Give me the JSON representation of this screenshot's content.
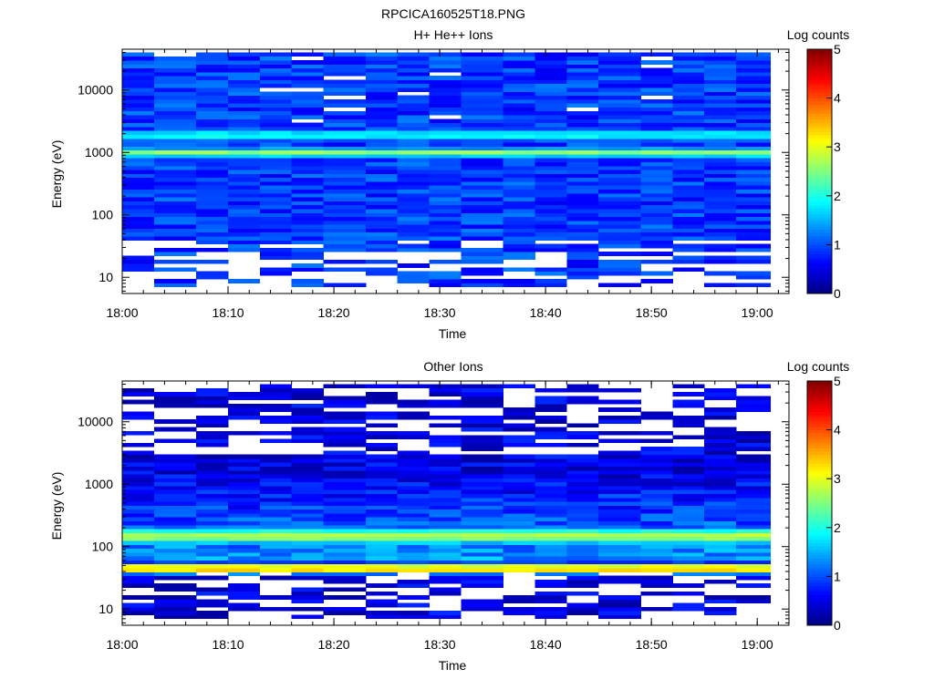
{
  "figure_title": "RPCICA160525T18.PNG",
  "chart_data": [
    {
      "type": "heatmap",
      "title": "H+ He++ Ions",
      "xlabel": "Time",
      "ylabel": "Energy (eV)",
      "xlim": [
        "18:00",
        "19:03"
      ],
      "ylim": [
        5.5,
        45000
      ],
      "yscale": "log",
      "x_ticks": [
        "18:00",
        "18:10",
        "18:20",
        "18:30",
        "18:40",
        "18:50",
        "19:00"
      ],
      "y_ticks": [
        "10",
        "100",
        "1000",
        "10000"
      ],
      "colorbar": {
        "label": "Log counts",
        "range": [
          0,
          5
        ],
        "ticks": [
          "0",
          "1",
          "2",
          "3",
          "4",
          "5"
        ]
      },
      "time_bins": [
        "18:00",
        "18:03",
        "18:07",
        "18:10",
        "18:13",
        "18:16",
        "18:19",
        "18:23",
        "18:26",
        "18:29",
        "18:32",
        "18:36",
        "18:39",
        "18:42",
        "18:45",
        "18:49",
        "18:52",
        "18:55",
        "18:58"
      ],
      "features": [
        {
          "energy": 1000,
          "log_counts": 2.6,
          "description_band": "peak"
        },
        {
          "energy": 1900,
          "log_counts": 1.9,
          "description_band": "secondary"
        }
      ],
      "background_log_counts": 0.9
    },
    {
      "type": "heatmap",
      "title": "Other Ions",
      "xlabel": "Time",
      "ylabel": "Energy (eV)",
      "xlim": [
        "18:00",
        "19:03"
      ],
      "ylim": [
        5.5,
        45000
      ],
      "yscale": "log",
      "x_ticks": [
        "18:00",
        "18:10",
        "18:20",
        "18:30",
        "18:40",
        "18:50",
        "19:00"
      ],
      "y_ticks": [
        "10",
        "100",
        "1000",
        "10000"
      ],
      "colorbar": {
        "label": "Log counts",
        "range": [
          0,
          5
        ],
        "ticks": [
          "0",
          "1",
          "2",
          "3",
          "4",
          "5"
        ]
      },
      "time_bins": [
        "18:00",
        "18:03",
        "18:07",
        "18:10",
        "18:13",
        "18:16",
        "18:19",
        "18:23",
        "18:26",
        "18:29",
        "18:32",
        "18:36",
        "18:39",
        "18:42",
        "18:45",
        "18:49",
        "18:52",
        "18:55",
        "18:58"
      ],
      "features": [
        {
          "energy": 45,
          "log_counts": 3.6,
          "description_band": "peak"
        },
        {
          "energy": 150,
          "log_counts": 2.2,
          "description_band": "secondary"
        }
      ],
      "background_log_counts": 0.5
    }
  ]
}
